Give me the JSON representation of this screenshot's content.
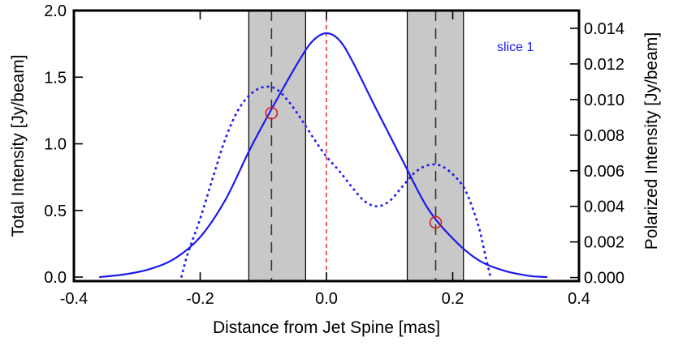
{
  "chart_data": {
    "type": "line",
    "title": "",
    "annotation": "slice 1",
    "xlabel": "Distance from Jet Spine [mas]",
    "ylabel_left": "Total Intensity [Jy/beam]",
    "ylabel_right": "Polarized Intensity [Jy/beam]",
    "xlim": [
      -0.4,
      0.4
    ],
    "ylim_left": [
      -0.03,
      2.0
    ],
    "ylim_right": [
      -0.0002,
      0.015
    ],
    "x_ticks": [
      "-0.4",
      "-0.2",
      "0.0",
      "0.2",
      "0.4"
    ],
    "y_ticks_left": [
      "0.0",
      "0.5",
      "1.0",
      "1.5",
      "2.0"
    ],
    "y_ticks_right": [
      "0.000",
      "0.002",
      "0.004",
      "0.006",
      "0.008",
      "0.010",
      "0.012",
      "0.014"
    ],
    "shaded_regions": [
      {
        "x_start": -0.123,
        "x_end": -0.033
      },
      {
        "x_start": 0.128,
        "x_end": 0.217
      }
    ],
    "dashed_vlines": [
      -0.087,
      0.173
    ],
    "center_line": 0.0,
    "series": [
      {
        "name": "Total Intensity",
        "axis": "left",
        "style": "solid",
        "color": "#1a1aee",
        "x": [
          -0.36,
          -0.32,
          -0.28,
          -0.24,
          -0.2,
          -0.16,
          -0.12,
          -0.08,
          -0.04,
          -0.02,
          0.0,
          0.02,
          0.04,
          0.08,
          0.12,
          0.16,
          0.2,
          0.24,
          0.28,
          0.32,
          0.35
        ],
        "y": [
          0.0,
          0.02,
          0.06,
          0.14,
          0.3,
          0.58,
          0.97,
          1.32,
          1.65,
          1.78,
          1.83,
          1.78,
          1.63,
          1.25,
          0.88,
          0.52,
          0.29,
          0.13,
          0.05,
          0.01,
          0.0
        ]
      },
      {
        "name": "Polarized Intensity",
        "axis": "right",
        "style": "dotted",
        "color": "#1a1aee",
        "x": [
          -0.23,
          -0.22,
          -0.2,
          -0.18,
          -0.16,
          -0.14,
          -0.12,
          -0.1,
          -0.08,
          -0.06,
          -0.04,
          -0.02,
          0.0,
          0.02,
          0.04,
          0.06,
          0.08,
          0.1,
          0.12,
          0.14,
          0.16,
          0.18,
          0.2,
          0.22,
          0.24,
          0.25,
          0.26
        ],
        "y": [
          0.0,
          0.0013,
          0.0033,
          0.0056,
          0.0078,
          0.0094,
          0.0103,
          0.0107,
          0.0106,
          0.0099,
          0.0089,
          0.0078,
          0.0068,
          0.006,
          0.0051,
          0.0043,
          0.004,
          0.0043,
          0.0051,
          0.0059,
          0.0063,
          0.0063,
          0.0058,
          0.0049,
          0.003,
          0.0015,
          0.0
        ]
      }
    ],
    "markers": [
      {
        "x": -0.087,
        "y": 1.23,
        "axis": "left",
        "shape": "open-circle",
        "color": "#cc2222"
      },
      {
        "x": 0.173,
        "y": 0.41,
        "axis": "left",
        "shape": "open-circle",
        "color": "#cc2222"
      }
    ]
  }
}
